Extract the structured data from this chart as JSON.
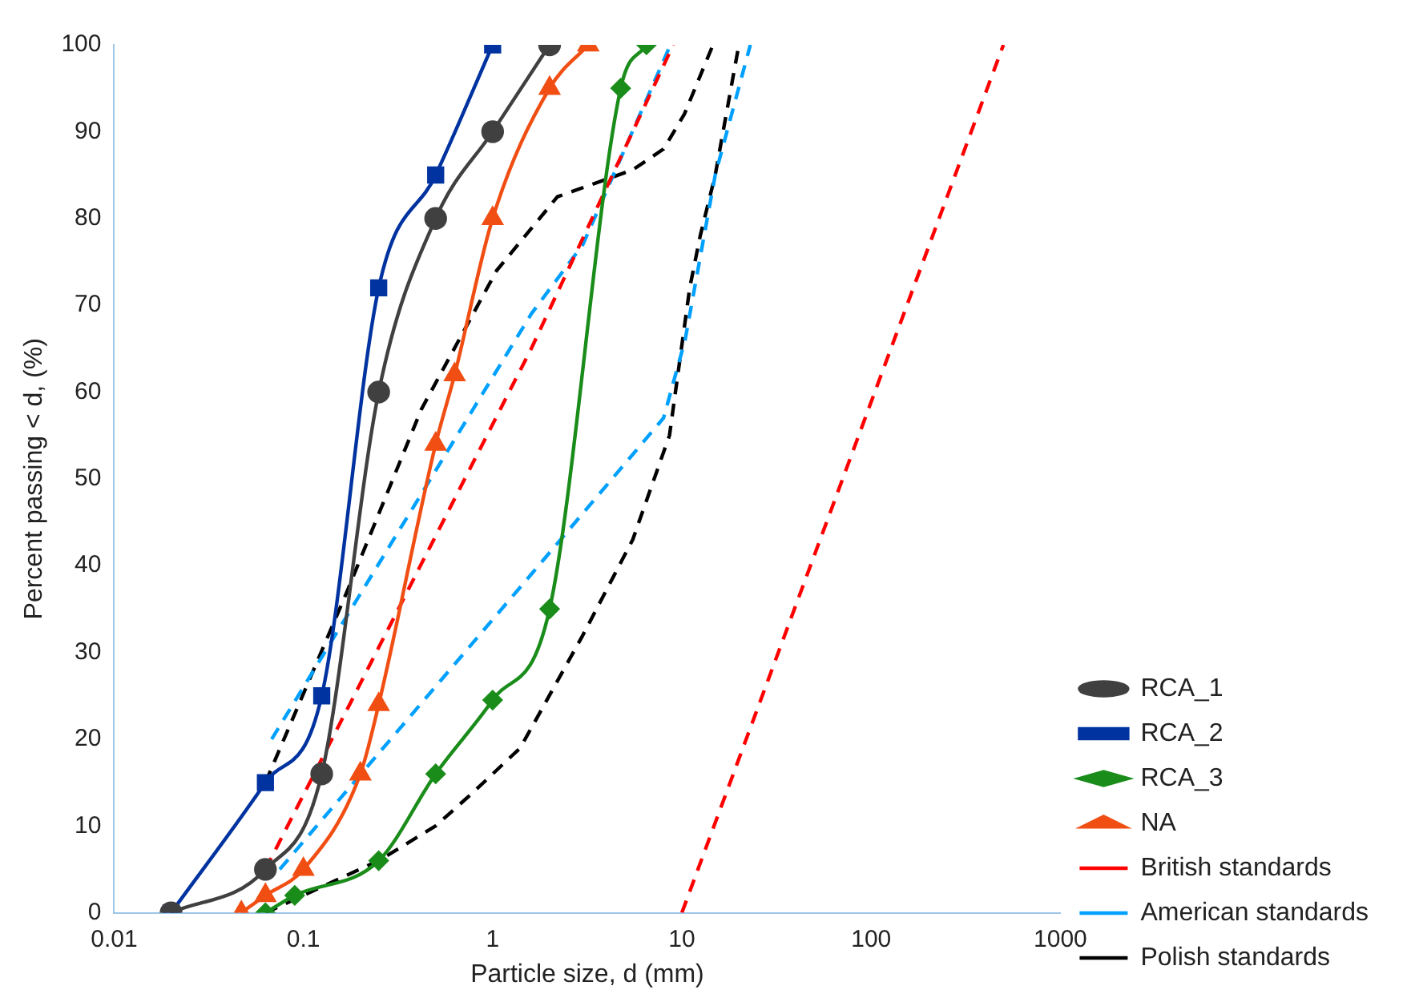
{
  "chart_data": {
    "type": "line",
    "xlabel": "Particle size, d (mm)",
    "ylabel": "Percent passing < d, (%)",
    "log": "x",
    "xlim": [
      0.01,
      1000
    ],
    "xticks": [
      0.01,
      0.1,
      1,
      10,
      100,
      1000
    ],
    "ylim": [
      0,
      100
    ],
    "yticks": [
      0,
      10,
      20,
      30,
      40,
      50,
      60,
      70,
      80,
      90,
      100
    ],
    "grid": false,
    "legend": "bottom right",
    "series": [
      {
        "name": "RCA_1",
        "color": "#404040",
        "marker": "circle",
        "line_style": "solid",
        "x": [
          0.02,
          0.063,
          0.125,
          0.25,
          0.5,
          1,
          2
        ],
        "values": [
          0,
          5,
          16,
          60,
          80,
          90,
          100
        ]
      },
      {
        "name": "RCA_2",
        "color": "#0033a0",
        "marker": "square",
        "line_style": "solid",
        "x": [
          0.02,
          0.063,
          0.125,
          0.25,
          0.5,
          1
        ],
        "values": [
          0,
          15,
          25,
          72,
          85,
          100
        ]
      },
      {
        "name": "RCA_3",
        "color": "#1a8c1a",
        "marker": "diamond",
        "line_style": "solid",
        "x": [
          0.063,
          0.09,
          0.25,
          0.5,
          1,
          2,
          4.75,
          6.5
        ],
        "values": [
          0,
          2,
          6,
          16,
          24.5,
          35,
          95,
          100
        ]
      },
      {
        "name": "NA",
        "color": "#f04e12",
        "marker": "triangle",
        "line_style": "solid",
        "x": [
          0.047,
          0.063,
          0.1,
          0.2,
          0.25,
          0.5,
          0.63,
          1,
          2,
          3.2
        ],
        "values": [
          0,
          2,
          5,
          16,
          24,
          54,
          62,
          80,
          95,
          100
        ]
      },
      {
        "name": "British standards",
        "color": "#ff0000",
        "marker": "none",
        "line_style": "dashed",
        "x": [
          0.063,
          1.6,
          9,
          null,
          10,
          500
        ],
        "values": [
          5,
          65,
          100,
          null,
          0,
          100
        ]
      },
      {
        "name": "American standards",
        "color": "#00a0ff",
        "marker": "none",
        "line_style": "dashed",
        "x": [
          0.068,
          1.6,
          3,
          8.7,
          null,
          0.075,
          1.6,
          8,
          10.4,
          15,
          23
        ],
        "values": [
          20,
          69,
          77,
          100,
          null,
          5,
          39,
          57,
          66,
          85,
          100
        ]
      },
      {
        "name": "Polish standards",
        "color": "#000000",
        "marker": "none",
        "line_style": "dashed",
        "x": [
          0.063,
          0.17,
          0.42,
          1.05,
          2.2,
          5.5,
          8,
          10.3,
          14.6,
          null,
          0.063,
          0.25,
          0.5,
          0.8,
          1.4,
          3,
          5.5,
          8.6,
          11,
          12.5,
          15,
          20
        ],
        "values": [
          15,
          37,
          58,
          74,
          82.5,
          85.6,
          88,
          92,
          100,
          null,
          0,
          6,
          10,
          14,
          19,
          32,
          43,
          55,
          72,
          78,
          85,
          100
        ]
      }
    ]
  }
}
